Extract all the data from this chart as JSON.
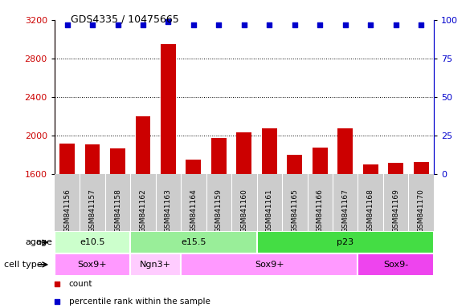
{
  "title": "GDS4335 / 10475665",
  "samples": [
    "GSM841156",
    "GSM841157",
    "GSM841158",
    "GSM841162",
    "GSM841163",
    "GSM841164",
    "GSM841159",
    "GSM841160",
    "GSM841161",
    "GSM841165",
    "GSM841166",
    "GSM841167",
    "GSM841168",
    "GSM841169",
    "GSM841170"
  ],
  "counts": [
    1920,
    1910,
    1870,
    2200,
    2950,
    1750,
    1980,
    2040,
    2080,
    1800,
    1880,
    2080,
    1700,
    1720,
    1730
  ],
  "percentile": [
    97,
    97,
    97,
    97,
    99,
    97,
    97,
    97,
    97,
    97,
    97,
    97,
    97,
    97,
    97
  ],
  "ylim_left": [
    1600,
    3200
  ],
  "ylim_right": [
    0,
    100
  ],
  "yticks_left": [
    1600,
    2000,
    2400,
    2800,
    3200
  ],
  "yticks_right": [
    0,
    25,
    50,
    75,
    100
  ],
  "bar_color": "#cc0000",
  "dot_color": "#0000cc",
  "age_groups": [
    {
      "label": "e10.5",
      "start": 0,
      "end": 3,
      "color": "#ccffcc"
    },
    {
      "label": "e15.5",
      "start": 3,
      "end": 8,
      "color": "#99ee99"
    },
    {
      "label": "p23",
      "start": 8,
      "end": 15,
      "color": "#44dd44"
    }
  ],
  "cell_type_groups": [
    {
      "label": "Sox9+",
      "start": 0,
      "end": 3,
      "color": "#ff99ff"
    },
    {
      "label": "Ngn3+",
      "start": 3,
      "end": 5,
      "color": "#ffccff"
    },
    {
      "label": "Sox9+",
      "start": 5,
      "end": 12,
      "color": "#ff99ff"
    },
    {
      "label": "Sox9-",
      "start": 12,
      "end": 15,
      "color": "#ee44ee"
    }
  ],
  "bg_color": "#ffffff",
  "xlabel_bg": "#cccccc",
  "legend_items": [
    {
      "label": "count",
      "color": "#cc0000"
    },
    {
      "label": "percentile rank within the sample",
      "color": "#0000cc"
    }
  ]
}
